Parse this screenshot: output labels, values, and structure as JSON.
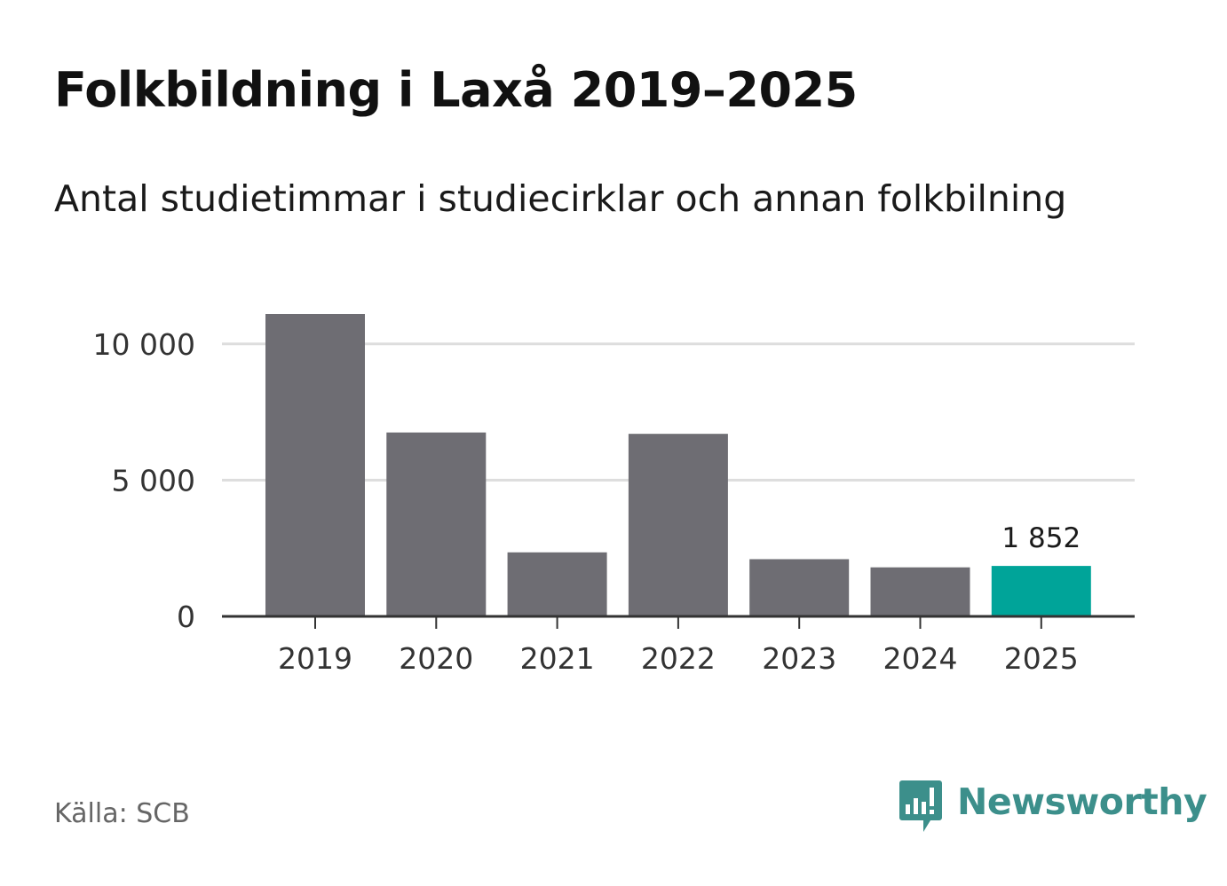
{
  "header": {
    "title": "Folkbildning i Laxå 2019–2025",
    "subtitle": "Antal studietimmar i studiecirklar och annan folkbilning"
  },
  "footer": {
    "source": "Källa: SCB",
    "brand": "Newsworthy"
  },
  "colors": {
    "bar": "#6e6d73",
    "highlight": "#00a499",
    "grid": "#dddddd",
    "axis": "#333333",
    "brand": "#3c8f8b"
  },
  "icons": {
    "brand_logo": "newsworthy-logo-icon"
  },
  "chart_data": {
    "type": "bar",
    "title": "Folkbildning i Laxå 2019–2025",
    "subtitle": "Antal studietimmar i studiecirklar och annan folkbilning",
    "categories": [
      "2019",
      "2020",
      "2021",
      "2022",
      "2023",
      "2024",
      "2025"
    ],
    "values": [
      11100,
      6750,
      2350,
      6700,
      2100,
      1800,
      1852
    ],
    "highlight_index": 6,
    "data_labels": [
      {
        "index": 6,
        "text": "1 852"
      }
    ],
    "yticks": [
      {
        "value": 0,
        "label": "0"
      },
      {
        "value": 5000,
        "label": "5 000"
      },
      {
        "value": 10000,
        "label": "10 000"
      }
    ],
    "ylim": [
      0,
      11100
    ],
    "xlabel": "",
    "ylabel": "",
    "grid": true,
    "legend": "none"
  }
}
